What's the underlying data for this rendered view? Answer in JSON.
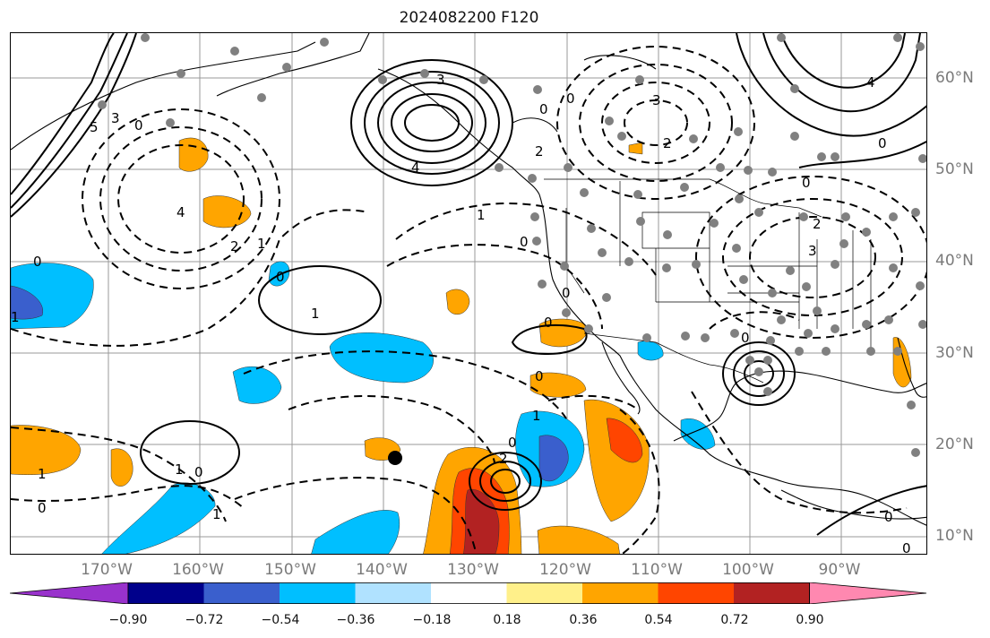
{
  "title": "2024082200 F120",
  "lat_labels": [
    "60°N",
    "50°N",
    "40°N",
    "30°N",
    "20°N",
    "10°N"
  ],
  "lon_labels": [
    "170°W",
    "160°W",
    "150°W",
    "140°W",
    "130°W",
    "120°W",
    "110°W",
    "100°W",
    "90°W"
  ],
  "colorbar": {
    "ticks": [
      "−0.90",
      "−0.72",
      "−0.54",
      "−0.36",
      "−0.18",
      "0.18",
      "0.36",
      "0.54",
      "0.72",
      "0.90"
    ],
    "colors": [
      "#9932cc",
      "#00008b",
      "#3a5fcd",
      "#00bfff",
      "#b0e2ff",
      "#ffffff",
      "#fff08a",
      "#ffa500",
      "#ff4500",
      "#b22222",
      "#ff88b0"
    ]
  },
  "contour_labels": [
    "3",
    "4",
    "0",
    "2",
    "0",
    "3",
    "2",
    "4",
    "0",
    "5",
    "3",
    "0",
    "4",
    "2",
    "1",
    "0",
    "1",
    "1",
    "0",
    "0",
    "0",
    "0",
    "1",
    "0",
    "1",
    "2",
    "1",
    "0",
    "0",
    "1",
    "0",
    "3",
    "0",
    "2",
    "0",
    "0",
    "1",
    "0"
  ],
  "colors": {
    "negative": "#00bfff",
    "negative_strong": "#3a5fcd",
    "positive": "#ffa500",
    "positive_strong": "#ff4500",
    "positive_max": "#b22222",
    "stations": "#808080"
  },
  "marker": "black-dot"
}
